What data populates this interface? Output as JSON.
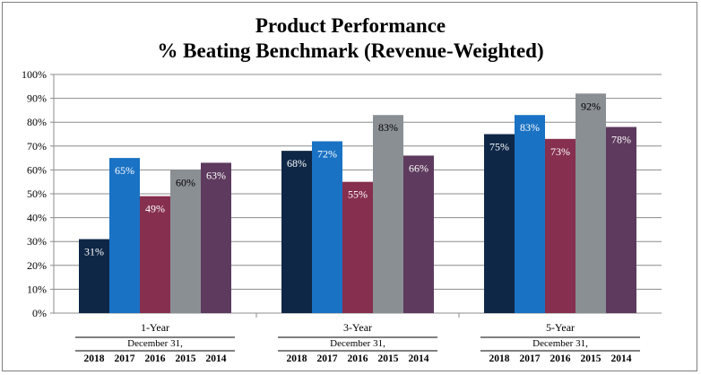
{
  "chart_data": {
    "type": "bar",
    "title": "Product Performance",
    "subtitle": "% Beating Benchmark (Revenue-Weighted)",
    "xlabel": "",
    "ylabel": "",
    "ylim": [
      0,
      100
    ],
    "y_ticks": [
      "0%",
      "10%",
      "20%",
      "30%",
      "40%",
      "50%",
      "60%",
      "70%",
      "80%",
      "90%",
      "100%"
    ],
    "y_tick_values": [
      0,
      10,
      20,
      30,
      40,
      50,
      60,
      70,
      80,
      90,
      100
    ],
    "grid": true,
    "legend": "none",
    "categories": [
      "1-Year",
      "3-Year",
      "5-Year"
    ],
    "group_sublabel": "December 31,",
    "series": [
      {
        "name": "2018",
        "color": "#0f2747",
        "values": [
          31,
          68,
          75
        ],
        "labels": [
          "31%",
          "68%",
          "75%"
        ]
      },
      {
        "name": "2017",
        "color": "#1a72c4",
        "values": [
          65,
          72,
          83
        ],
        "labels": [
          "65%",
          "72%",
          "83%"
        ]
      },
      {
        "name": "2016",
        "color": "#862f4e",
        "values": [
          49,
          55,
          73
        ],
        "labels": [
          "49%",
          "55%",
          "73%"
        ]
      },
      {
        "name": "2015",
        "color": "#8a8f94",
        "values": [
          60,
          83,
          92
        ],
        "labels": [
          "60%",
          "83%",
          "92%"
        ]
      },
      {
        "name": "2014",
        "color": "#5e3a5e",
        "values": [
          63,
          66,
          78
        ],
        "labels": [
          "63%",
          "66%",
          "78%"
        ]
      }
    ]
  }
}
